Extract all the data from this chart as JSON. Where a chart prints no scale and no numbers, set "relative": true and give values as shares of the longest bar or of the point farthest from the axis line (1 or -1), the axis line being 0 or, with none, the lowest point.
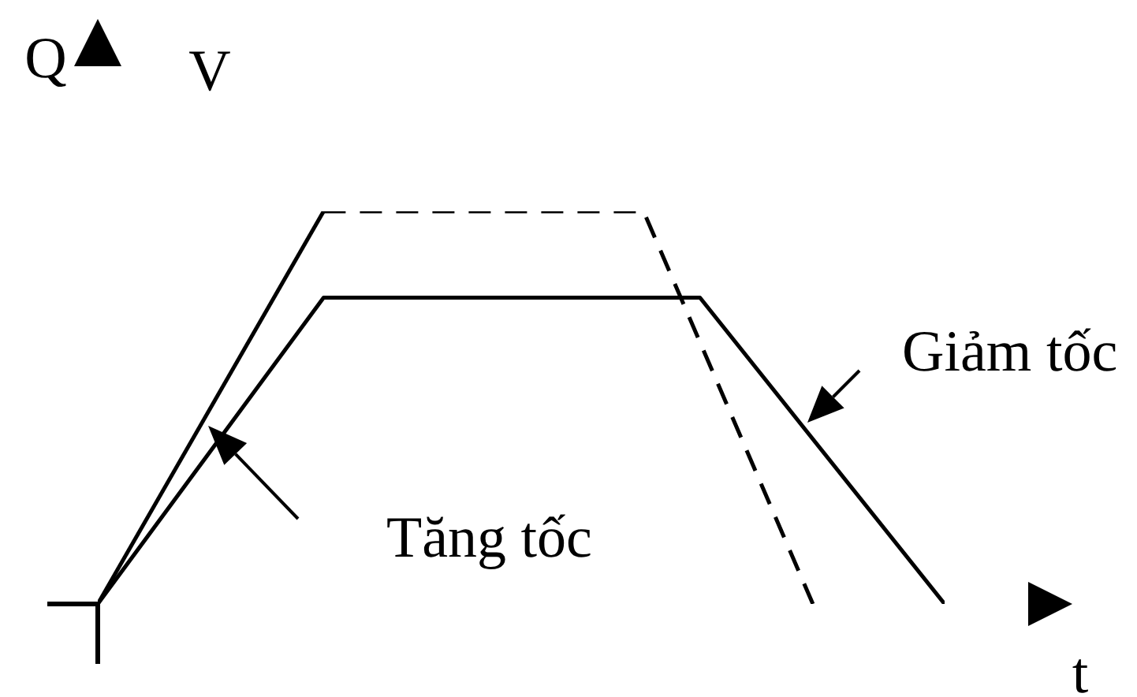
{
  "chart_data": {
    "type": "line",
    "xlabel": "t",
    "ylabel": "Q",
    "annotations": [
      "V",
      "Tăng tốc",
      "Giảm tốc"
    ],
    "relative": true,
    "marker": "none",
    "line_style": "solid",
    "categories": [
      null,
      null,
      null,
      null,
      null,
      null,
      null,
      null,
      null,
      null,
      null,
      null,
      null,
      null,
      null,
      null,
      null,
      null,
      null,
      null,
      null,
      null,
      null,
      null,
      null,
      null,
      null,
      null,
      null,
      null,
      null,
      null,
      null,
      null,
      null,
      null,
      null,
      null,
      null,
      null,
      null,
      null,
      null,
      null,
      null,
      null
    ],
    "series": [
      {
        "color": "#000000",
        "values": [
          0,
          null,
          null,
          null,
          null,
          null,
          null,
          null,
          null,
          null,
          null,
          null,
          0.78,
          null,
          null,
          null,
          null,
          null,
          null,
          null,
          null,
          null,
          null,
          null,
          null,
          null,
          null,
          null,
          null,
          null,
          null,
          null,
          0.78,
          null,
          null,
          null,
          null,
          null,
          null,
          null,
          null,
          null,
          null,
          null,
          null,
          0
        ]
      },
      {
        "color": "#000000",
        "values": [
          0,
          null,
          null,
          null,
          null,
          null,
          null,
          null,
          null,
          null,
          null,
          null,
          1,
          null,
          null,
          null,
          null,
          null,
          null,
          null,
          null,
          null,
          null,
          null,
          null,
          null,
          null,
          null,
          null,
          null,
          null,
          null,
          null,
          null,
          null,
          null,
          null,
          null,
          null,
          null,
          null,
          null,
          null,
          null,
          null,
          null
        ]
      },
      {
        "color": "#000000",
        "line_style": "dashed",
        "values": [
          null,
          null,
          null,
          null,
          null,
          null,
          null,
          null,
          null,
          null,
          null,
          null,
          1,
          null,
          null,
          null,
          null,
          null,
          null,
          null,
          null,
          null,
          null,
          null,
          null,
          null,
          null,
          null,
          null,
          1,
          null,
          null,
          null,
          null,
          null,
          null,
          null,
          null,
          0,
          null,
          null,
          null,
          null,
          null,
          null,
          null
        ]
      }
    ]
  }
}
